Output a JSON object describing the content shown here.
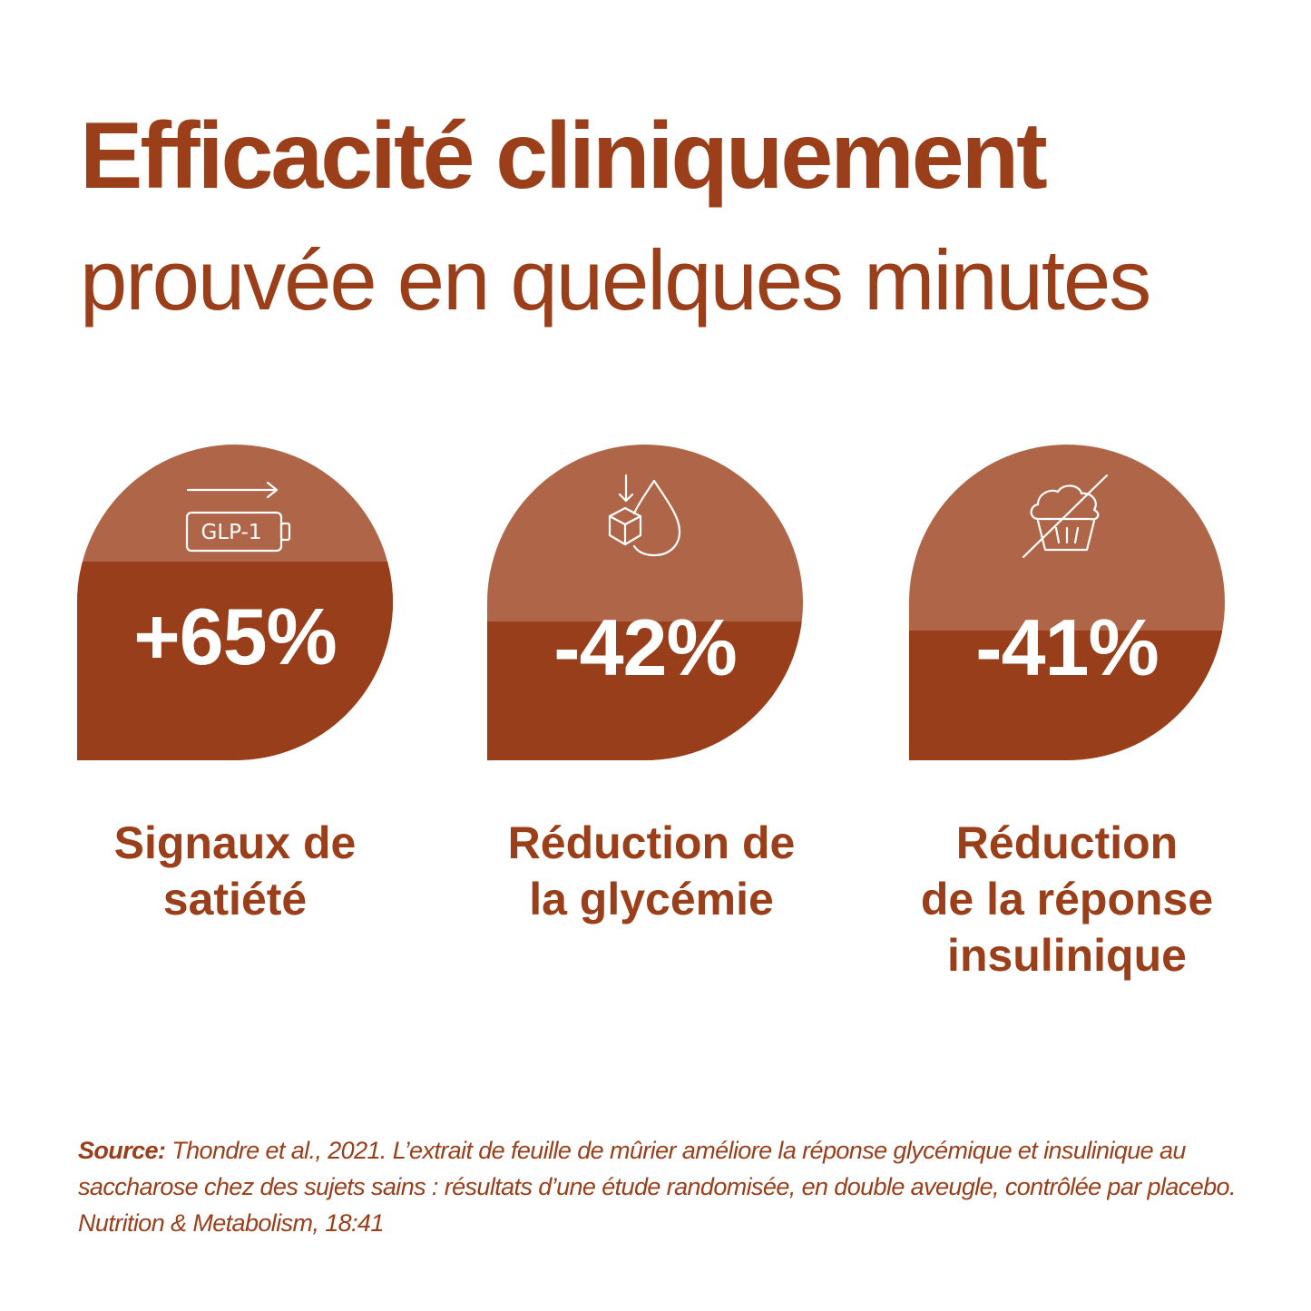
{
  "title": {
    "line1": "Efficacité cliniquement",
    "line2": "prouvée en quelques minutes"
  },
  "colors": {
    "brand": "#9a3f1a",
    "card_light": "#af6548",
    "card_dark": "#983e1a"
  },
  "stats": [
    {
      "value": "+65%",
      "icon": "glp1-battery-arrow-icon",
      "icon_text": "GLP-1",
      "level": 0.63,
      "label_lines": [
        "Signaux de",
        "satiété"
      ]
    },
    {
      "value": "-42%",
      "icon": "sugar-cube-drop-icon",
      "level": 0.44,
      "label_lines": [
        "Réduction de",
        "la glycémie"
      ]
    },
    {
      "value": "-41%",
      "icon": "crossed-out-muffin-icon",
      "level": 0.41,
      "label_lines": [
        "Réduction",
        "de la réponse",
        "insulinique"
      ]
    }
  ],
  "source": {
    "prefix": "Source:",
    "text": "Thondre et al., 2021. L’extrait de feuille de mûrier améliore la réponse glycémique et insulinique au saccharose chez des sujets sains : résultats d’une étude randomisée, en double aveugle, contrôlée par placebo. Nutrition & Metabolism, 18:41"
  }
}
